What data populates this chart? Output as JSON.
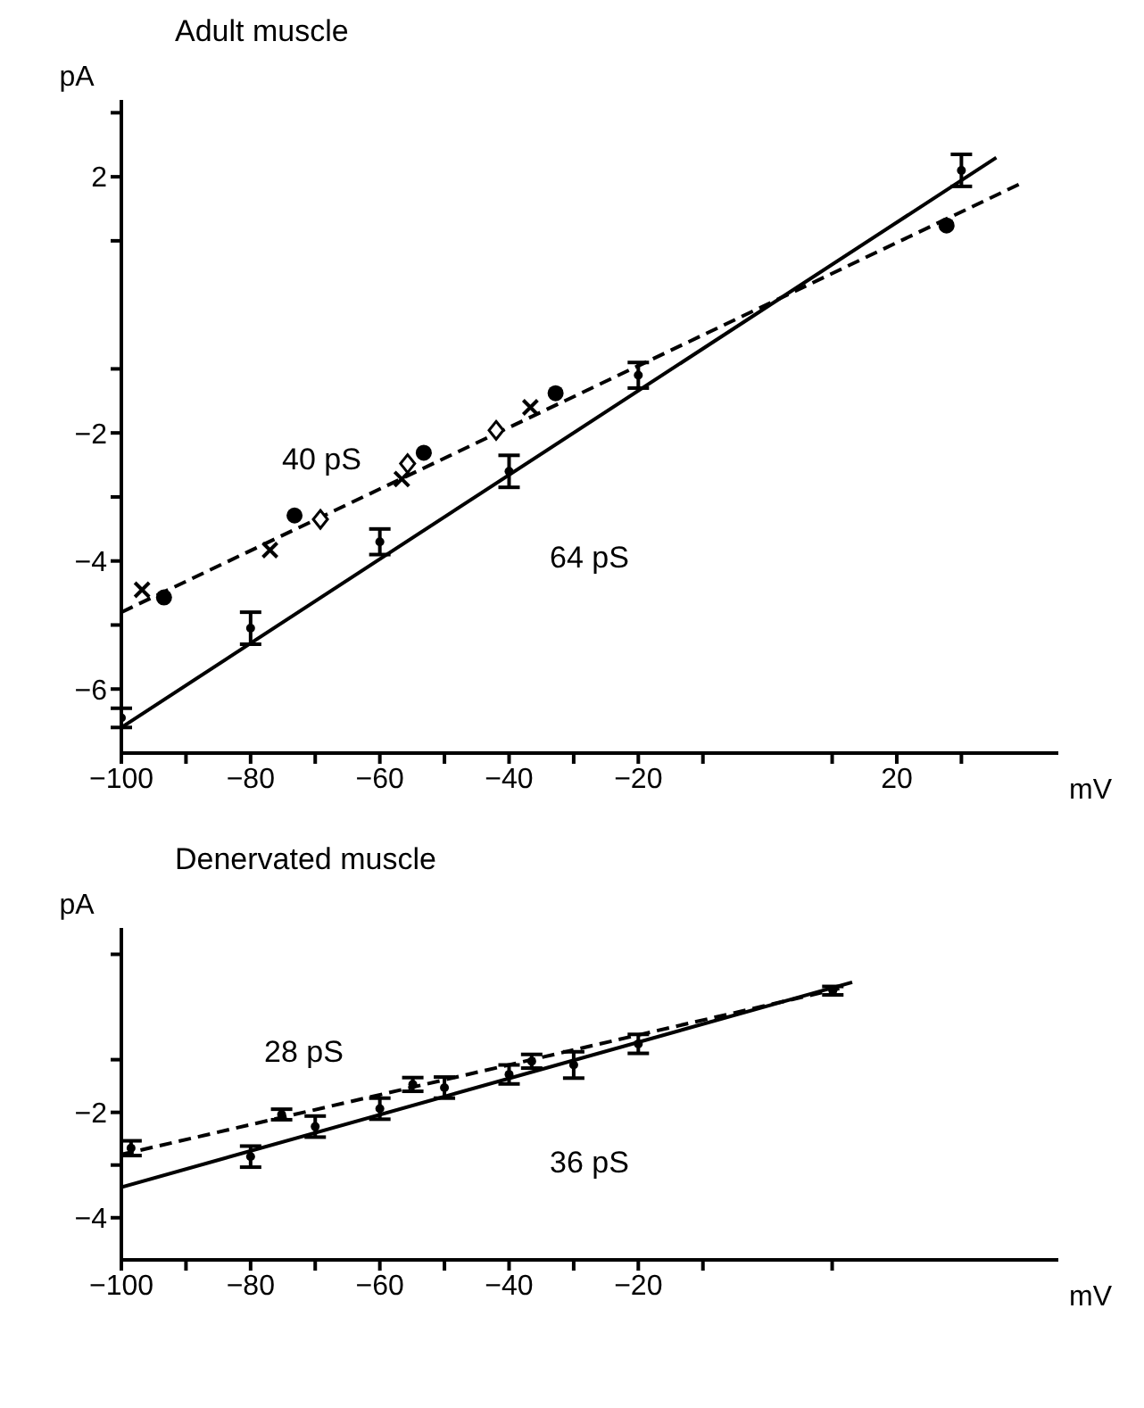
{
  "chart_data": [
    {
      "type": "scatter",
      "title": "Adult muscle",
      "xlabel": "mV",
      "ylabel": "pA",
      "xlim": [
        -100,
        45
      ],
      "ylim": [
        -7,
        3.2
      ],
      "xticks": [
        -100,
        {
          "value": -90,
          "label": null
        },
        -80,
        {
          "value": -70,
          "label": null
        },
        -60,
        {
          "value": -50,
          "label": null
        },
        -40,
        {
          "value": -30,
          "label": null
        },
        -20,
        {
          "value": -10,
          "label": null
        },
        {
          "value": 10,
          "label": null
        },
        20,
        {
          "value": 30,
          "label": null
        }
      ],
      "yticks": [
        -6,
        {
          "value": -5,
          "label": null
        },
        -4,
        {
          "value": -3,
          "label": null
        },
        -2,
        {
          "value": -1,
          "label": null
        },
        {
          "value": 1,
          "label": null
        },
        2,
        {
          "value": 3,
          "label": null
        }
      ],
      "series": [
        {
          "type": "line",
          "color": "#000000",
          "line_style": "solid",
          "marker": "none",
          "x": [
            -100,
            35.4
          ],
          "values": [
            -6.6,
            2.3
          ]
        },
        {
          "type": "line",
          "color": "#000000",
          "line_style": "dashed",
          "marker": "none",
          "x": [
            -100,
            39.3
          ],
          "values": [
            -4.8,
            1.9
          ]
        },
        {
          "color": "#000000",
          "x": [
            -100,
            -80,
            -60,
            -40,
            -20,
            30
          ],
          "values": [
            -6.45,
            -5.05,
            -3.7,
            -2.6,
            -1.1,
            2.1
          ],
          "errors": [
            0.15,
            0.25,
            0.2,
            0.25,
            0.2,
            0.25
          ]
        },
        {
          "color": "#000000",
          "marker": "circle",
          "x": [
            -93.4,
            -73.2,
            -53.2,
            -32.8,
            27.7
          ],
          "values": [
            -4.57,
            -3.29,
            -2.31,
            -1.38,
            1.24
          ]
        },
        {
          "color": "#000000",
          "marker": "cross",
          "x": [
            -96.8,
            -77,
            -56.6,
            -36.7
          ],
          "values": [
            -4.45,
            -3.83,
            -2.72,
            -1.6
          ]
        },
        {
          "color": "#000000",
          "marker": "diamond",
          "x": [
            -69.2,
            -55.7,
            -42
          ],
          "values": [
            -3.35,
            -2.48,
            -1.96
          ]
        }
      ],
      "annotations": [
        "40 pS",
        "64 pS"
      ]
    },
    {
      "type": "scatter",
      "title": "Denervated muscle",
      "xlabel": "mV",
      "ylabel": "pA",
      "xlim": [
        -100,
        45
      ],
      "ylim": [
        -4.8,
        1.5
      ],
      "xticks": [
        -100,
        {
          "value": -90,
          "label": null
        },
        -80,
        {
          "value": -70,
          "label": null
        },
        -60,
        {
          "value": -50,
          "label": null
        },
        -40,
        {
          "value": -30,
          "label": null
        },
        -20,
        {
          "value": -10,
          "label": null
        },
        {
          "value": 10,
          "label": null
        }
      ],
      "yticks": [
        -4,
        {
          "value": -3,
          "label": null
        },
        -2,
        {
          "value": -1,
          "label": null
        },
        {
          "value": 1,
          "label": null
        }
      ],
      "series": [
        {
          "type": "line",
          "color": "#000000",
          "line_style": "solid",
          "marker": "none",
          "x": [
            -100,
            13.1
          ],
          "values": [
            -3.42,
            0.47
          ]
        },
        {
          "type": "line",
          "color": "#000000",
          "line_style": "dashed",
          "marker": "none",
          "x": [
            -100,
            11.1
          ],
          "values": [
            -2.8,
            0.35
          ]
        },
        {
          "color": "#000000",
          "x": [
            -80,
            -70,
            -60,
            -50,
            -40,
            -30,
            -20
          ],
          "values": [
            -2.84,
            -2.27,
            -1.93,
            -1.53,
            -1.28,
            -1.1,
            -0.7
          ],
          "errors": [
            0.2,
            0.2,
            0.2,
            0.2,
            0.18,
            0.25,
            0.18
          ]
        },
        {
          "color": "#000000",
          "x": [
            -98.5,
            -75.2,
            -54.9,
            -36.5,
            10.1
          ],
          "values": [
            -2.68,
            -2.04,
            -1.47,
            -1.03,
            0.31
          ],
          "errors": [
            0.14,
            0.1,
            0.13,
            0.13,
            0.08
          ]
        }
      ],
      "annotations": [
        "28 pS",
        "36 pS"
      ]
    }
  ]
}
